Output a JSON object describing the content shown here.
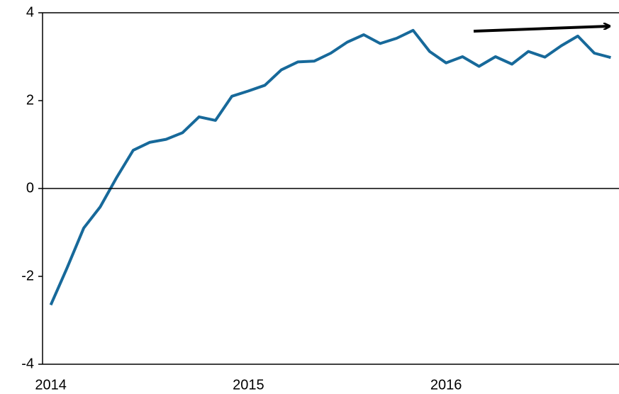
{
  "chart_data": {
    "type": "line",
    "categories": [
      "2014",
      null,
      null,
      null,
      null,
      null,
      null,
      null,
      null,
      null,
      null,
      null,
      "2015",
      null,
      null,
      null,
      null,
      null,
      null,
      null,
      null,
      null,
      null,
      null,
      "2016",
      null,
      null,
      null,
      null,
      null,
      null,
      null,
      null,
      null,
      null
    ],
    "series": [
      {
        "color": "#17699a",
        "values": [
          -2.65,
          -1.8,
          -0.9,
          -0.42,
          0.25,
          0.87,
          1.05,
          1.12,
          1.27,
          1.63,
          1.55,
          2.1,
          2.22,
          2.35,
          2.7,
          2.88,
          2.9,
          3.08,
          3.33,
          3.5,
          3.3,
          3.42,
          3.6,
          3.12,
          2.86,
          3.0,
          2.78,
          3.0,
          2.83,
          3.12,
          2.99,
          3.25,
          3.47,
          3.08,
          2.98
        ]
      }
    ],
    "ylim": [
      -4,
      4
    ],
    "yticks": [
      -4,
      -2,
      0,
      2,
      4
    ]
  }
}
